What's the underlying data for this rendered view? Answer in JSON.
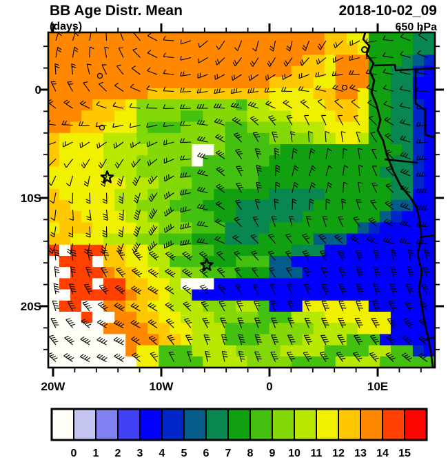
{
  "header": {
    "title": "BB Age Distr. Mean",
    "units_label": "(days)",
    "datetime": "2018-10-02_09",
    "level": "650 hPa"
  },
  "chart_data": {
    "type": "heatmap",
    "title": "BB Age Distr. Mean",
    "subtitle_units": "(days)",
    "datetime": "2018-10-02_09",
    "pressure_level": "650 hPa",
    "overlay": "wind-barbs",
    "region": "southeast Atlantic / southern Africa",
    "lon_range_deg": [
      -20.4,
      15.3
    ],
    "lat_range_deg": [
      -25.7,
      5.3
    ],
    "x_ticks": [
      {
        "lon": -20,
        "label": "20W"
      },
      {
        "lon": -10,
        "label": "10W"
      },
      {
        "lon": 0,
        "label": "0"
      },
      {
        "lon": 10,
        "label": "10E"
      }
    ],
    "y_ticks": [
      {
        "lat": 0,
        "label": "0"
      },
      {
        "lat": -10,
        "label": "10S"
      },
      {
        "lat": -20,
        "label": "20S"
      }
    ],
    "minor_tick_step_deg": 2,
    "colorbar": {
      "labels": [
        "0",
        "1",
        "2",
        "3",
        "4",
        "5",
        "6",
        "7",
        "8",
        "9",
        "10",
        "11",
        "12",
        "13",
        "14",
        "15"
      ],
      "colors": [
        "#fffff8",
        "#c4c4f0",
        "#8080f0",
        "#4040f4",
        "#0000fc",
        "#0028c8",
        "#045c88",
        "#088850",
        "#10a010",
        "#44c010",
        "#84d808",
        "#b8e800",
        "#f0f000",
        "#ffc800",
        "#ff8800",
        "#ff4000",
        "#fc0400"
      ]
    },
    "grid": {
      "cols": 35,
      "rows": 30,
      "value_chars": "0123456789abcdefg",
      "rows_data": [
        "eeeeeeeeeeeeeeeeeeeeeeeeeddcc888877",
        "eeeeeeeeeeeeeeeeeeeeeeeeedddc888877",
        "eeeeeeeeeeeeeeeeeeeeeeeddceee888765",
        "eeeeeeeeeeeeeeeeeeeeeedddceee887754",
        "eeeeeeeeeeeeeeeeeeeeddddcceee887744",
        "eeeeeeeeedddddddddddccccddeec887744",
        "eeeedddcaaaaaaaaa9bbcccccdddc887754",
        "eeedddccaaaa99aaaabbbbccccddc887754",
        "eedddccca999aaaa99aaaabbbcccc887754",
        "dccccbbbaaaaaaaa9999aaaabbccb887754",
        "dccccbbbbaaaa00a9999988888888888754",
        "dccccbbbaaaaa0999999888888888887754",
        "cccccbbbaaaa99999998888888888877754",
        "cccccccbbbaaa9999998888888888887754",
        "dcccccbbbaaa99988888777778888887744",
        "ddccccbbaaa999888777777788888886644",
        "dddccccbbaaa99988777777888888865444",
        "cdddccccbbaaa9997777888888886544444",
        "ddcccbbbaa9998887778888866644444444",
        "f0fffddccbbaa9988888887774444444444",
        "0fff0ddccbb999888999664444444444444",
        "00fffeddccbbaa999888666444444444444",
        "0fff0ffddccb00044444444444444444444",
        "00fffffeddcbb4444444444444444444444",
        "0ff00eeddccbbbaaabb9444cccccc444444",
        "000f00eeddccbbbaaaa999bbbcccccc4444",
        "00000eeeeddccbbb9999aaaabbbbccc4444",
        "0000000eeeddcbbb999aaaabbbb99944444",
        "0000000ecc999bbbbaaaabbbb9999bb9954",
        "00000000cc9999bbbbaaaa9999bbbb99999"
      ]
    },
    "markers": [
      {
        "type": "star",
        "lon": -15.0,
        "lat": -8.1
      },
      {
        "type": "star",
        "lon": -5.8,
        "lat": -16.2
      }
    ]
  }
}
